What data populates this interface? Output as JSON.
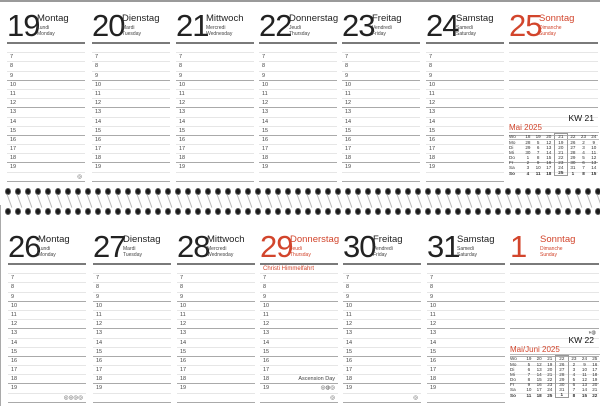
{
  "weeks": [
    {
      "kw": "KW 21",
      "days": [
        {
          "num": "19",
          "name": "Montag",
          "fr": "Lundi",
          "en": "Monday"
        },
        {
          "num": "20",
          "name": "Dienstag",
          "fr": "Mardi",
          "en": "Tuesday"
        },
        {
          "num": "21",
          "name": "Mittwoch",
          "fr": "Mercredi",
          "en": "Wednesday"
        },
        {
          "num": "22",
          "name": "Donnerstag",
          "fr": "Jeudi",
          "en": "Thursday"
        },
        {
          "num": "23",
          "name": "Freitag",
          "fr": "Vendredi",
          "en": "Friday"
        },
        {
          "num": "24",
          "name": "Samstag",
          "fr": "Samedi",
          "en": "Saturday"
        },
        {
          "num": "25",
          "name": "Sonntag",
          "fr": "Dimanche",
          "en": "Sunday",
          "sunday": true
        }
      ],
      "mini": {
        "title": "Mai 2025",
        "head": [
          "Wo",
          "18",
          "19",
          "20",
          "21",
          "22",
          "23",
          "24"
        ],
        "highlight": 4,
        "rows": [
          [
            "Mo",
            "28",
            "5",
            "12",
            "19",
            "26",
            "2",
            "9"
          ],
          [
            "Di",
            "29",
            "6",
            "13",
            "20",
            "27",
            "3",
            "10"
          ],
          [
            "Mi",
            "30",
            "7",
            "14",
            "21",
            "28",
            "4",
            "11"
          ],
          [
            "Do",
            "1",
            "8",
            "15",
            "22",
            "29",
            "5",
            "12"
          ],
          [
            "Fr",
            "2",
            "9",
            "16",
            "23",
            "30",
            "6",
            "13"
          ],
          [
            "Sa",
            "3",
            "10",
            "17",
            "24",
            "31",
            "7",
            "14"
          ],
          [
            "So",
            "4",
            "11",
            "18",
            "25",
            "1",
            "8",
            "15"
          ]
        ]
      }
    },
    {
      "kw": "KW 22",
      "days": [
        {
          "num": "26",
          "name": "Montag",
          "fr": "Lundi",
          "en": "Monday"
        },
        {
          "num": "27",
          "name": "Dienstag",
          "fr": "Mardi",
          "en": "Tuesday"
        },
        {
          "num": "28",
          "name": "Mittwoch",
          "fr": "Mercredi",
          "en": "Wednesday"
        },
        {
          "num": "29",
          "name": "Donnerstag",
          "fr": "Jeudi",
          "en": "Thursday",
          "holiday": true,
          "holiday_de": "Christi Himmelfahrt",
          "holiday_en": "Ascension Day"
        },
        {
          "num": "30",
          "name": "Freitag",
          "fr": "Vendredi",
          "en": "Friday"
        },
        {
          "num": "31",
          "name": "Samstag",
          "fr": "Samedi",
          "en": "Saturday"
        },
        {
          "num": "1",
          "name": "Sonntag",
          "fr": "Dimanche",
          "en": "Sunday",
          "sunday": true
        }
      ],
      "mini": {
        "title": "Mai/Juni 2025",
        "head": [
          "Wo",
          "19",
          "20",
          "21",
          "22",
          "23",
          "24",
          "25"
        ],
        "highlight": 4,
        "rows": [
          [
            "Mo",
            "5",
            "12",
            "19",
            "26",
            "2",
            "9",
            "16"
          ],
          [
            "Di",
            "6",
            "13",
            "20",
            "27",
            "3",
            "10",
            "17"
          ],
          [
            "Mi",
            "7",
            "14",
            "21",
            "28",
            "4",
            "11",
            "18"
          ],
          [
            "Do",
            "8",
            "15",
            "22",
            "29",
            "5",
            "12",
            "19"
          ],
          [
            "Fr",
            "9",
            "16",
            "23",
            "30",
            "6",
            "13",
            "20"
          ],
          [
            "Sa",
            "10",
            "17",
            "24",
            "31",
            "7",
            "14",
            "21"
          ],
          [
            "So",
            "11",
            "18",
            "25",
            "1",
            "8",
            "15",
            "22"
          ]
        ]
      }
    }
  ],
  "hours": [
    "7",
    "8",
    "9",
    "10",
    "11",
    "12",
    "13",
    "14",
    "15",
    "16",
    "17",
    "18",
    "19"
  ],
  "colors": {
    "accent": "#d2452c",
    "text": "#222"
  },
  "icons": {
    "moon": "moon-phase-icon"
  }
}
